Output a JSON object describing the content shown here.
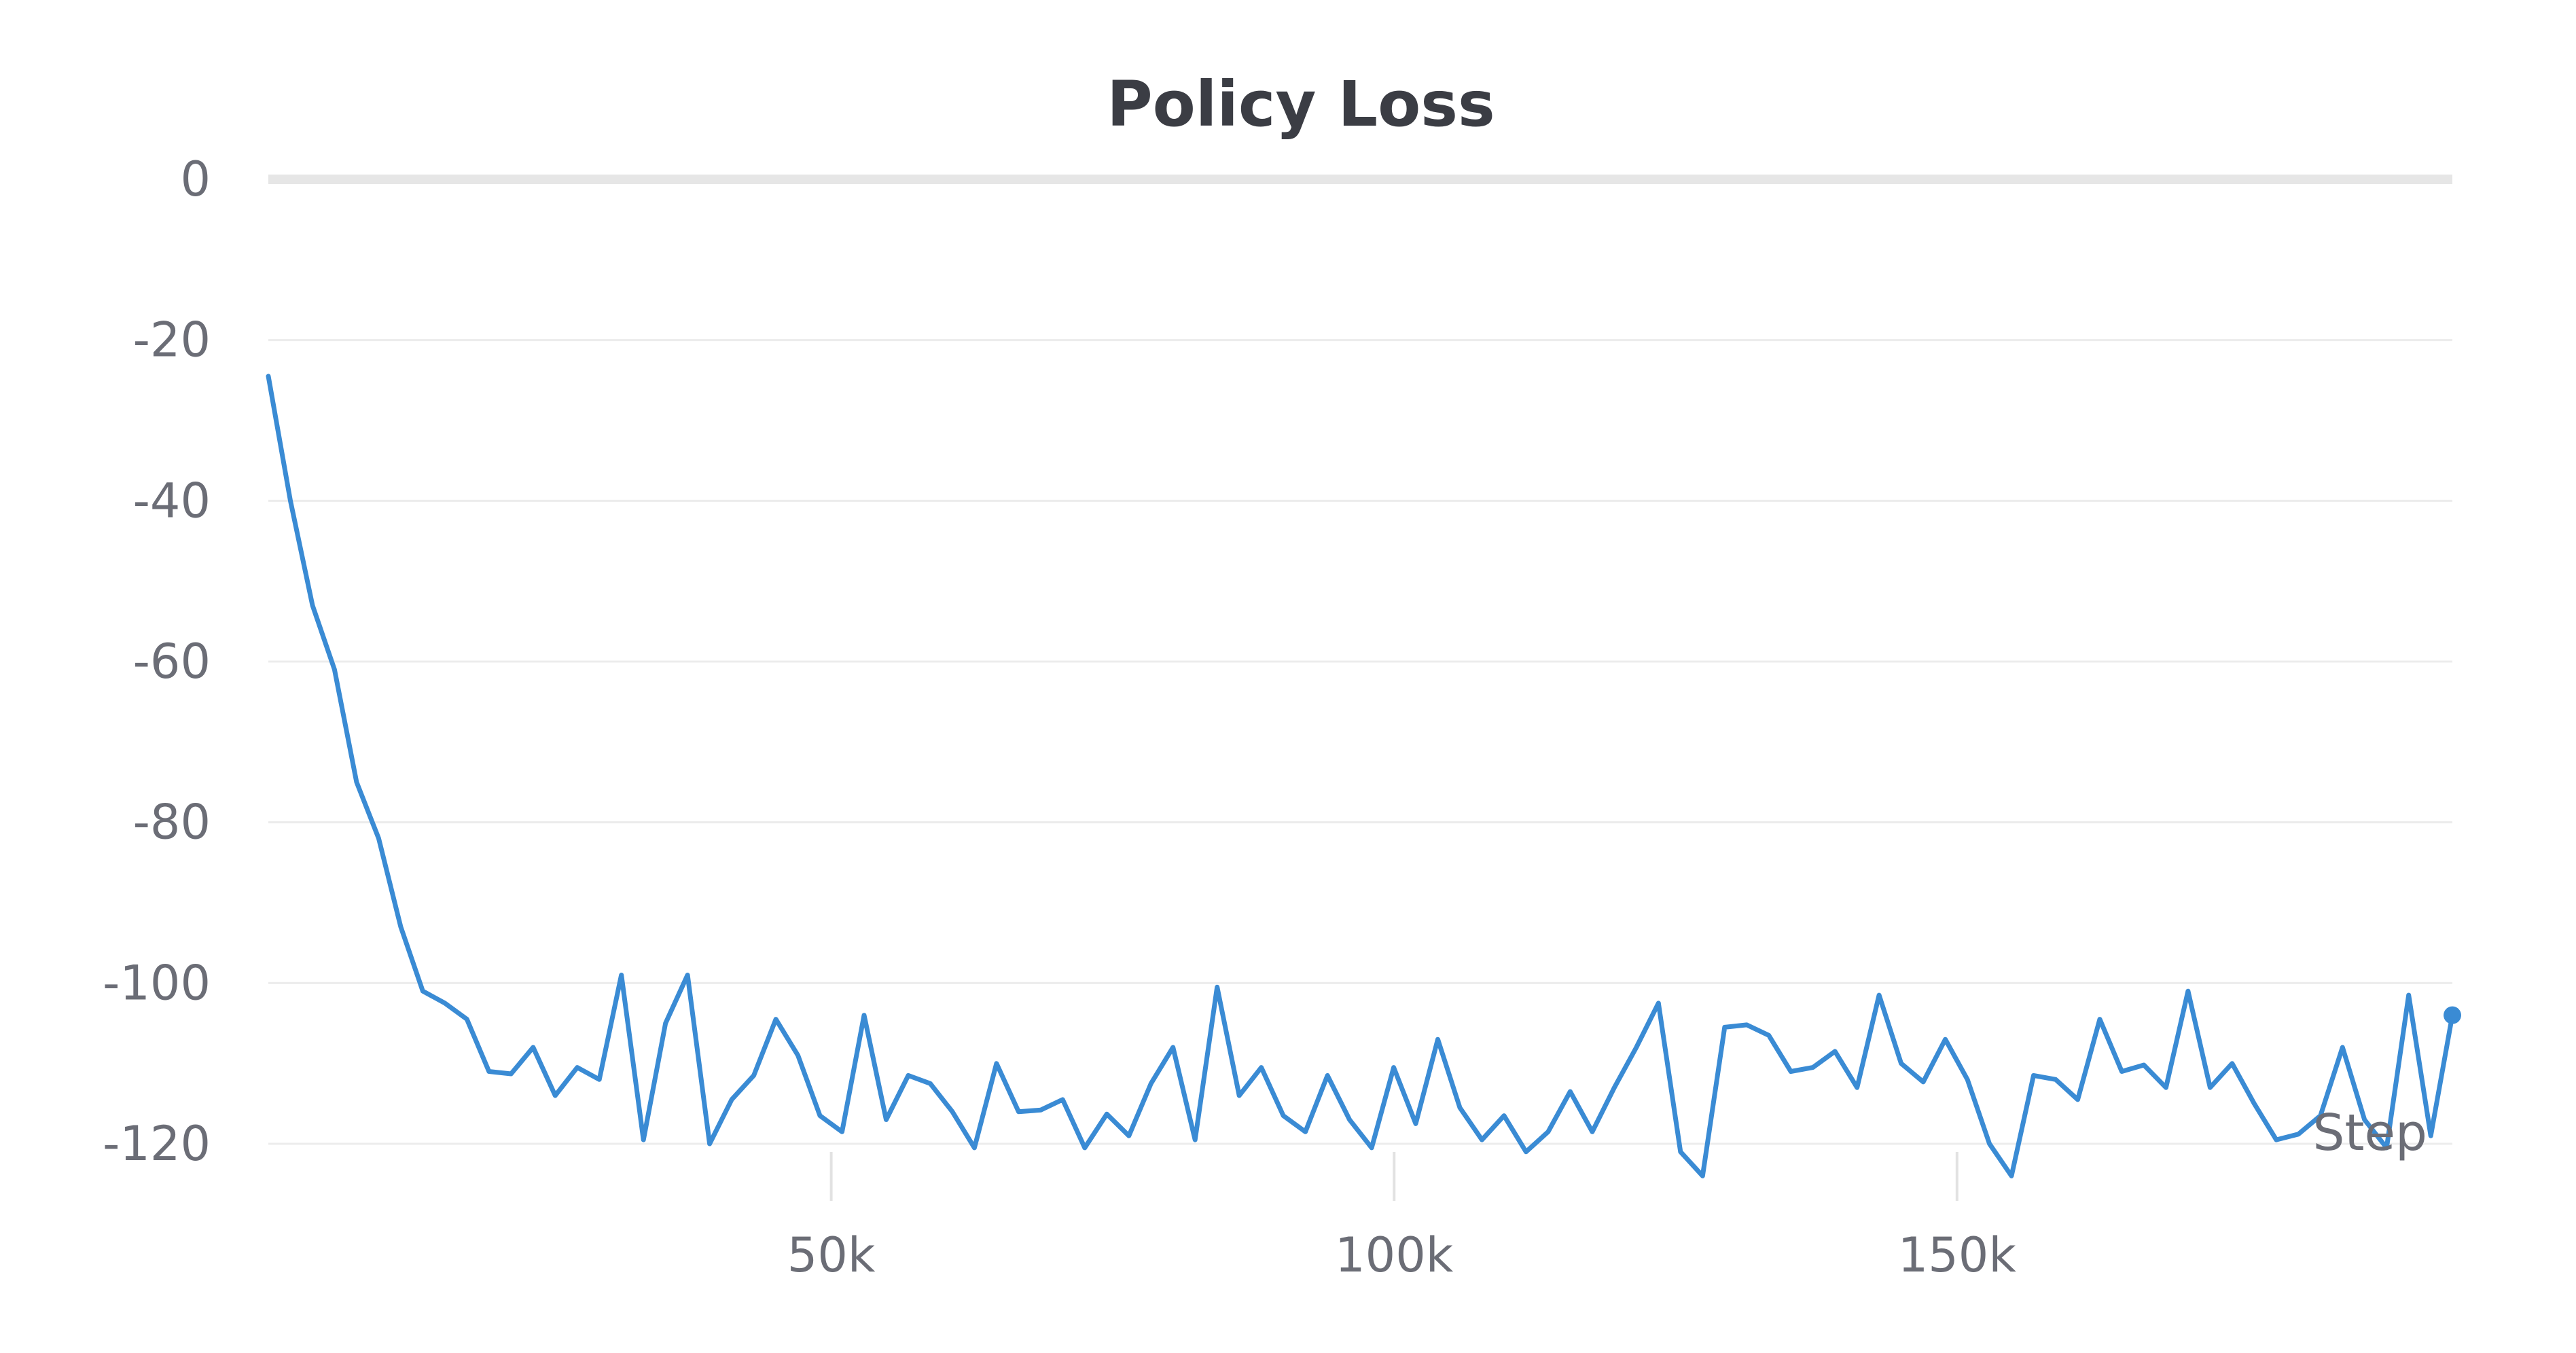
{
  "chart_data": {
    "type": "line",
    "title": "Policy Loss",
    "xlabel": "Step",
    "ylabel": "",
    "xlim": [
      0,
      194000
    ],
    "ylim": [
      -125,
      0
    ],
    "y_ticks": [
      0,
      -20,
      -40,
      -60,
      -80,
      -100,
      -120
    ],
    "x_ticks": [
      50000,
      100000,
      150000
    ],
    "x_tick_labels": [
      "50k",
      "100k",
      "150k"
    ],
    "y_tick_labels": [
      "0",
      "-20",
      "-40",
      "-60",
      "-80",
      "-100",
      "-120"
    ],
    "grid": true,
    "legend": "none",
    "series": [
      {
        "color": "#3a8bd4",
        "x": [
          0,
          1960,
          3920,
          5880,
          7840,
          9800,
          11760,
          13720,
          15680,
          17640,
          19600,
          21560,
          23520,
          25480,
          27440,
          29400,
          31360,
          33320,
          35280,
          37240,
          39200,
          41160,
          43120,
          45080,
          47040,
          49000,
          50960,
          52920,
          54880,
          56840,
          58800,
          60760,
          62720,
          64680,
          66640,
          68600,
          70560,
          72520,
          74480,
          76440,
          78400,
          80360,
          82320,
          84280,
          86240,
          88200,
          90160,
          92120,
          94080,
          96040,
          98000,
          99960,
          101920,
          103880,
          105840,
          107800,
          109760,
          111720,
          113680,
          115640,
          117600,
          119560,
          121520,
          123480,
          125440,
          127400,
          129360,
          131320,
          133280,
          135240,
          137200,
          139160,
          141120,
          143080,
          145040,
          147000,
          148960,
          150920,
          152880,
          154840,
          156800,
          158760,
          160720,
          162680,
          164640,
          166600,
          168560,
          170520,
          172480,
          174440,
          176400,
          178360,
          180320,
          182280,
          184240,
          186200,
          188160,
          190120,
          192080,
          194000
        ],
        "y": [
          -24.5,
          -40,
          -53,
          -61,
          -75,
          -82,
          -93,
          -101,
          -102.5,
          -104.5,
          -111,
          -111.3,
          -108,
          -114,
          -110.5,
          -112,
          -99,
          -119.5,
          -105,
          -99,
          -120,
          -114.5,
          -111.5,
          -104.5,
          -109,
          -116.5,
          -118.5,
          -104,
          -117,
          -111.5,
          -112.5,
          -116,
          -120.5,
          -110,
          -116,
          -115.8,
          -114.5,
          -120.5,
          -116.3,
          -119,
          -112.5,
          -108,
          -119.5,
          -100.5,
          -114,
          -110.5,
          -116.5,
          -118.5,
          -111.5,
          -117,
          -120.5,
          -110.5,
          -117.5,
          -107,
          -115.5,
          -119.5,
          -116.5,
          -121,
          -118.5,
          -113.5,
          -118.5,
          -113,
          -108,
          -102.5,
          -121,
          -124,
          -105.5,
          -105.2,
          -106.5,
          -111,
          -110.5,
          -108.5,
          -113,
          -101.5,
          -110,
          -112.3,
          -107,
          -112,
          -120,
          -124,
          -111.5,
          -112,
          -114.5,
          -104.5,
          -111,
          -110.2,
          -113,
          -101,
          -113,
          -110,
          -115,
          -119.5,
          -118.8,
          -116.5,
          -108,
          -117,
          -120.5,
          -101.5,
          -119,
          -104
        ]
      }
    ]
  }
}
